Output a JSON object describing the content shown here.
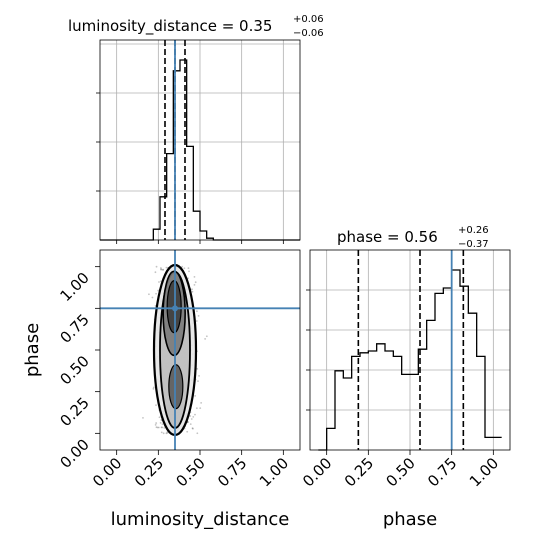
{
  "chart_data": [
    {
      "type": "histogram",
      "panel": "luminosity_distance-marginal",
      "title_prefix": "luminosity_distance = 0.35",
      "title_sup": "+0.06",
      "title_sub": "−0.06",
      "xlim": [
        -0.1,
        1.1
      ],
      "bin_edges": [
        -0.1,
        -0.06,
        -0.02,
        0.02,
        0.06,
        0.1,
        0.14,
        0.18,
        0.22,
        0.26,
        0.3,
        0.34,
        0.38,
        0.42,
        0.46,
        0.5,
        0.54,
        0.58,
        0.62,
        0.66,
        0.7,
        0.74,
        0.78,
        0.82,
        0.86,
        0.9,
        0.94,
        0.98,
        1.02,
        1.06,
        1.1
      ],
      "counts": [
        0,
        0,
        0,
        0,
        0,
        0,
        0,
        0,
        0.06,
        0.24,
        0.48,
        0.94,
        1.0,
        0.52,
        0.16,
        0.05,
        0.01,
        0,
        0,
        0,
        0,
        0,
        0,
        0,
        0,
        0,
        0,
        0,
        0,
        0
      ],
      "quantiles": [
        0.29,
        0.35,
        0.41
      ],
      "truth": 0.35,
      "grid": true
    },
    {
      "type": "contour",
      "panel": "luminosity_distance-vs-phase",
      "xlabel": "luminosity_distance",
      "ylabel": "phase",
      "xlim": [
        -0.1,
        1.1
      ],
      "ylim": [
        -0.1,
        1.1
      ],
      "xticks": [
        "0.00",
        "0.25",
        "0.50",
        "0.75",
        "1.00"
      ],
      "yticks": [
        "0.00",
        "0.25",
        "0.50",
        "0.75",
        "1.00"
      ],
      "truth": {
        "x": 0.35,
        "y": 0.75
      },
      "grid": false
    },
    {
      "type": "histogram",
      "panel": "phase-marginal",
      "title_prefix": "phase = 0.56",
      "title_sup": "+0.26",
      "title_sub": "−0.37",
      "xlabel": "phase",
      "xlim": [
        -0.1,
        1.1
      ],
      "xticks": [
        "0.00",
        "0.25",
        "0.50",
        "0.75",
        "1.00"
      ],
      "bin_edges": [
        -0.05,
        0.0,
        0.05,
        0.1,
        0.15,
        0.2,
        0.25,
        0.3,
        0.35,
        0.4,
        0.45,
        0.5,
        0.55,
        0.6,
        0.65,
        0.7,
        0.75,
        0.8,
        0.85,
        0.9,
        0.95,
        1.0,
        1.05
      ],
      "counts": [
        0.0,
        0.12,
        0.44,
        0.4,
        0.52,
        0.54,
        0.55,
        0.59,
        0.55,
        0.52,
        0.42,
        0.42,
        0.56,
        0.72,
        0.87,
        0.9,
        1.0,
        0.91,
        0.76,
        0.52,
        0.07,
        0.07
      ],
      "quantiles": [
        0.19,
        0.56,
        0.82
      ],
      "truth": 0.75,
      "grid": true
    }
  ],
  "colors": {
    "line": "#000000",
    "truth": "#4682b4",
    "grid": "#b0b0b0",
    "frame": "#000000"
  }
}
